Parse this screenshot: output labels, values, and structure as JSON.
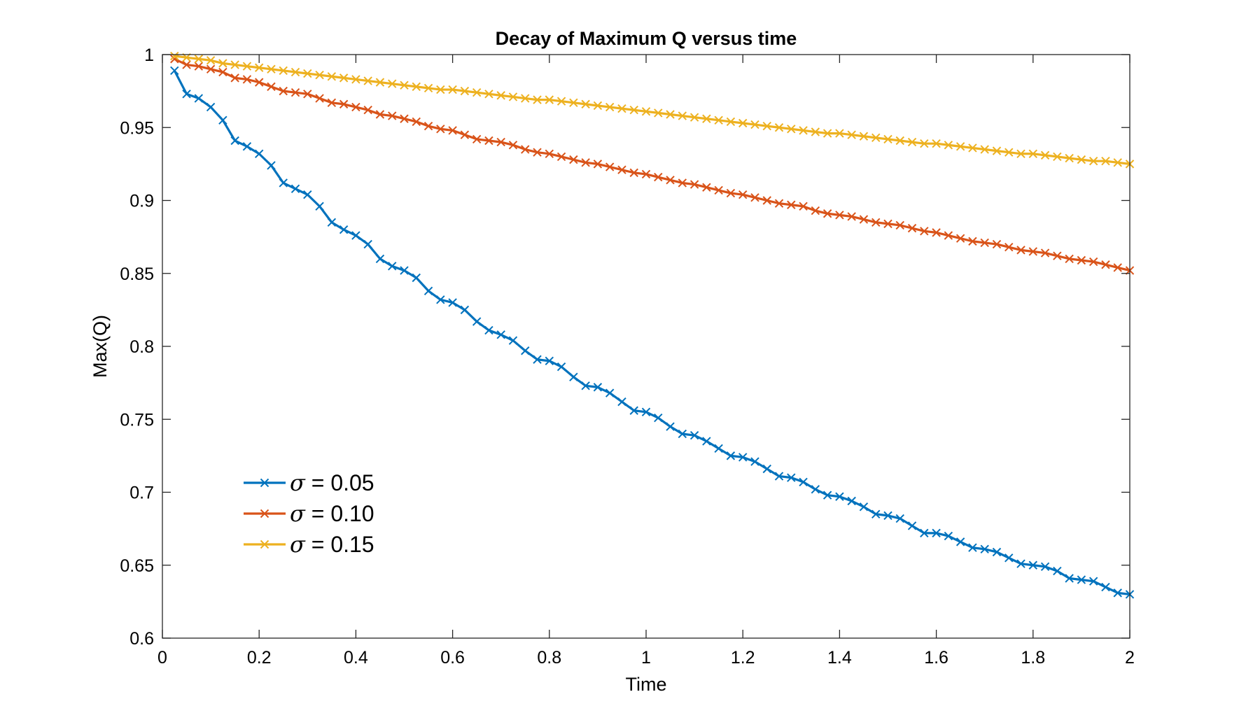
{
  "chart_data": {
    "type": "line",
    "title": "Decay of Maximum Q versus time",
    "xlabel": "Time",
    "ylabel": "Max(Q)",
    "xlim": [
      0,
      2
    ],
    "ylim": [
      0.6,
      1
    ],
    "xticks": [
      0,
      0.2,
      0.4,
      0.6,
      0.8,
      1,
      1.2,
      1.4,
      1.6,
      1.8,
      2
    ],
    "xtick_labels": [
      "0",
      "0.2",
      "0.4",
      "0.6",
      "0.8",
      "1",
      "1.2",
      "1.4",
      "1.6",
      "1.8",
      "2"
    ],
    "yticks": [
      0.6,
      0.65,
      0.7,
      0.75,
      0.8,
      0.85,
      0.9,
      0.95,
      1
    ],
    "ytick_labels": [
      "0.6",
      "0.65",
      "0.7",
      "0.75",
      "0.8",
      "0.85",
      "0.9",
      "0.95",
      "1"
    ],
    "grid": false,
    "box": true,
    "legend_position": "lower-left",
    "marker": "x",
    "x_start": 0.025,
    "x_step": 0.025,
    "series": [
      {
        "name": "σ = 0.05",
        "legend_symbol": "σ",
        "legend_value": "= 0.05",
        "color": "#0072BD",
        "values": [
          0.989,
          0.973,
          0.97,
          0.964,
          0.955,
          0.941,
          0.937,
          0.932,
          0.924,
          0.912,
          0.908,
          0.904,
          0.896,
          0.885,
          0.88,
          0.876,
          0.87,
          0.86,
          0.855,
          0.852,
          0.847,
          0.838,
          0.832,
          0.83,
          0.825,
          0.817,
          0.811,
          0.808,
          0.804,
          0.797,
          0.791,
          0.79,
          0.786,
          0.779,
          0.773,
          0.772,
          0.768,
          0.762,
          0.756,
          0.755,
          0.751,
          0.745,
          0.74,
          0.739,
          0.735,
          0.73,
          0.725,
          0.724,
          0.721,
          0.716,
          0.711,
          0.71,
          0.707,
          0.702,
          0.698,
          0.697,
          0.694,
          0.69,
          0.685,
          0.684,
          0.682,
          0.677,
          0.672,
          0.672,
          0.67,
          0.666,
          0.662,
          0.661,
          0.659,
          0.655,
          0.651,
          0.65,
          0.649,
          0.646,
          0.641,
          0.64,
          0.639,
          0.635,
          0.631,
          0.63
        ]
      },
      {
        "name": "σ = 0.10",
        "legend_symbol": "σ",
        "legend_value": "= 0.10",
        "color": "#D95319",
        "values": [
          0.997,
          0.993,
          0.992,
          0.99,
          0.988,
          0.984,
          0.983,
          0.981,
          0.978,
          0.975,
          0.974,
          0.973,
          0.97,
          0.967,
          0.966,
          0.964,
          0.962,
          0.959,
          0.958,
          0.956,
          0.954,
          0.951,
          0.949,
          0.948,
          0.945,
          0.942,
          0.941,
          0.94,
          0.938,
          0.935,
          0.933,
          0.932,
          0.93,
          0.928,
          0.926,
          0.925,
          0.923,
          0.921,
          0.919,
          0.918,
          0.916,
          0.914,
          0.912,
          0.911,
          0.909,
          0.907,
          0.905,
          0.904,
          0.902,
          0.9,
          0.898,
          0.897,
          0.896,
          0.893,
          0.891,
          0.89,
          0.889,
          0.887,
          0.885,
          0.884,
          0.883,
          0.881,
          0.879,
          0.878,
          0.876,
          0.874,
          0.872,
          0.871,
          0.87,
          0.868,
          0.866,
          0.865,
          0.864,
          0.862,
          0.86,
          0.859,
          0.858,
          0.856,
          0.854,
          0.852
        ]
      },
      {
        "name": "σ = 0.15",
        "legend_symbol": "σ",
        "legend_value": "= 0.15",
        "color": "#EDB120",
        "values": [
          0.999,
          0.998,
          0.997,
          0.996,
          0.994,
          0.993,
          0.992,
          0.991,
          0.99,
          0.989,
          0.988,
          0.987,
          0.986,
          0.985,
          0.984,
          0.983,
          0.982,
          0.981,
          0.98,
          0.979,
          0.978,
          0.977,
          0.976,
          0.976,
          0.975,
          0.974,
          0.973,
          0.972,
          0.971,
          0.97,
          0.969,
          0.969,
          0.968,
          0.967,
          0.966,
          0.965,
          0.964,
          0.963,
          0.962,
          0.961,
          0.96,
          0.959,
          0.958,
          0.957,
          0.956,
          0.955,
          0.954,
          0.953,
          0.952,
          0.951,
          0.95,
          0.949,
          0.948,
          0.947,
          0.946,
          0.946,
          0.945,
          0.944,
          0.943,
          0.942,
          0.941,
          0.94,
          0.939,
          0.939,
          0.938,
          0.937,
          0.936,
          0.935,
          0.934,
          0.933,
          0.932,
          0.932,
          0.931,
          0.93,
          0.929,
          0.928,
          0.927,
          0.927,
          0.926,
          0.925
        ]
      }
    ]
  }
}
